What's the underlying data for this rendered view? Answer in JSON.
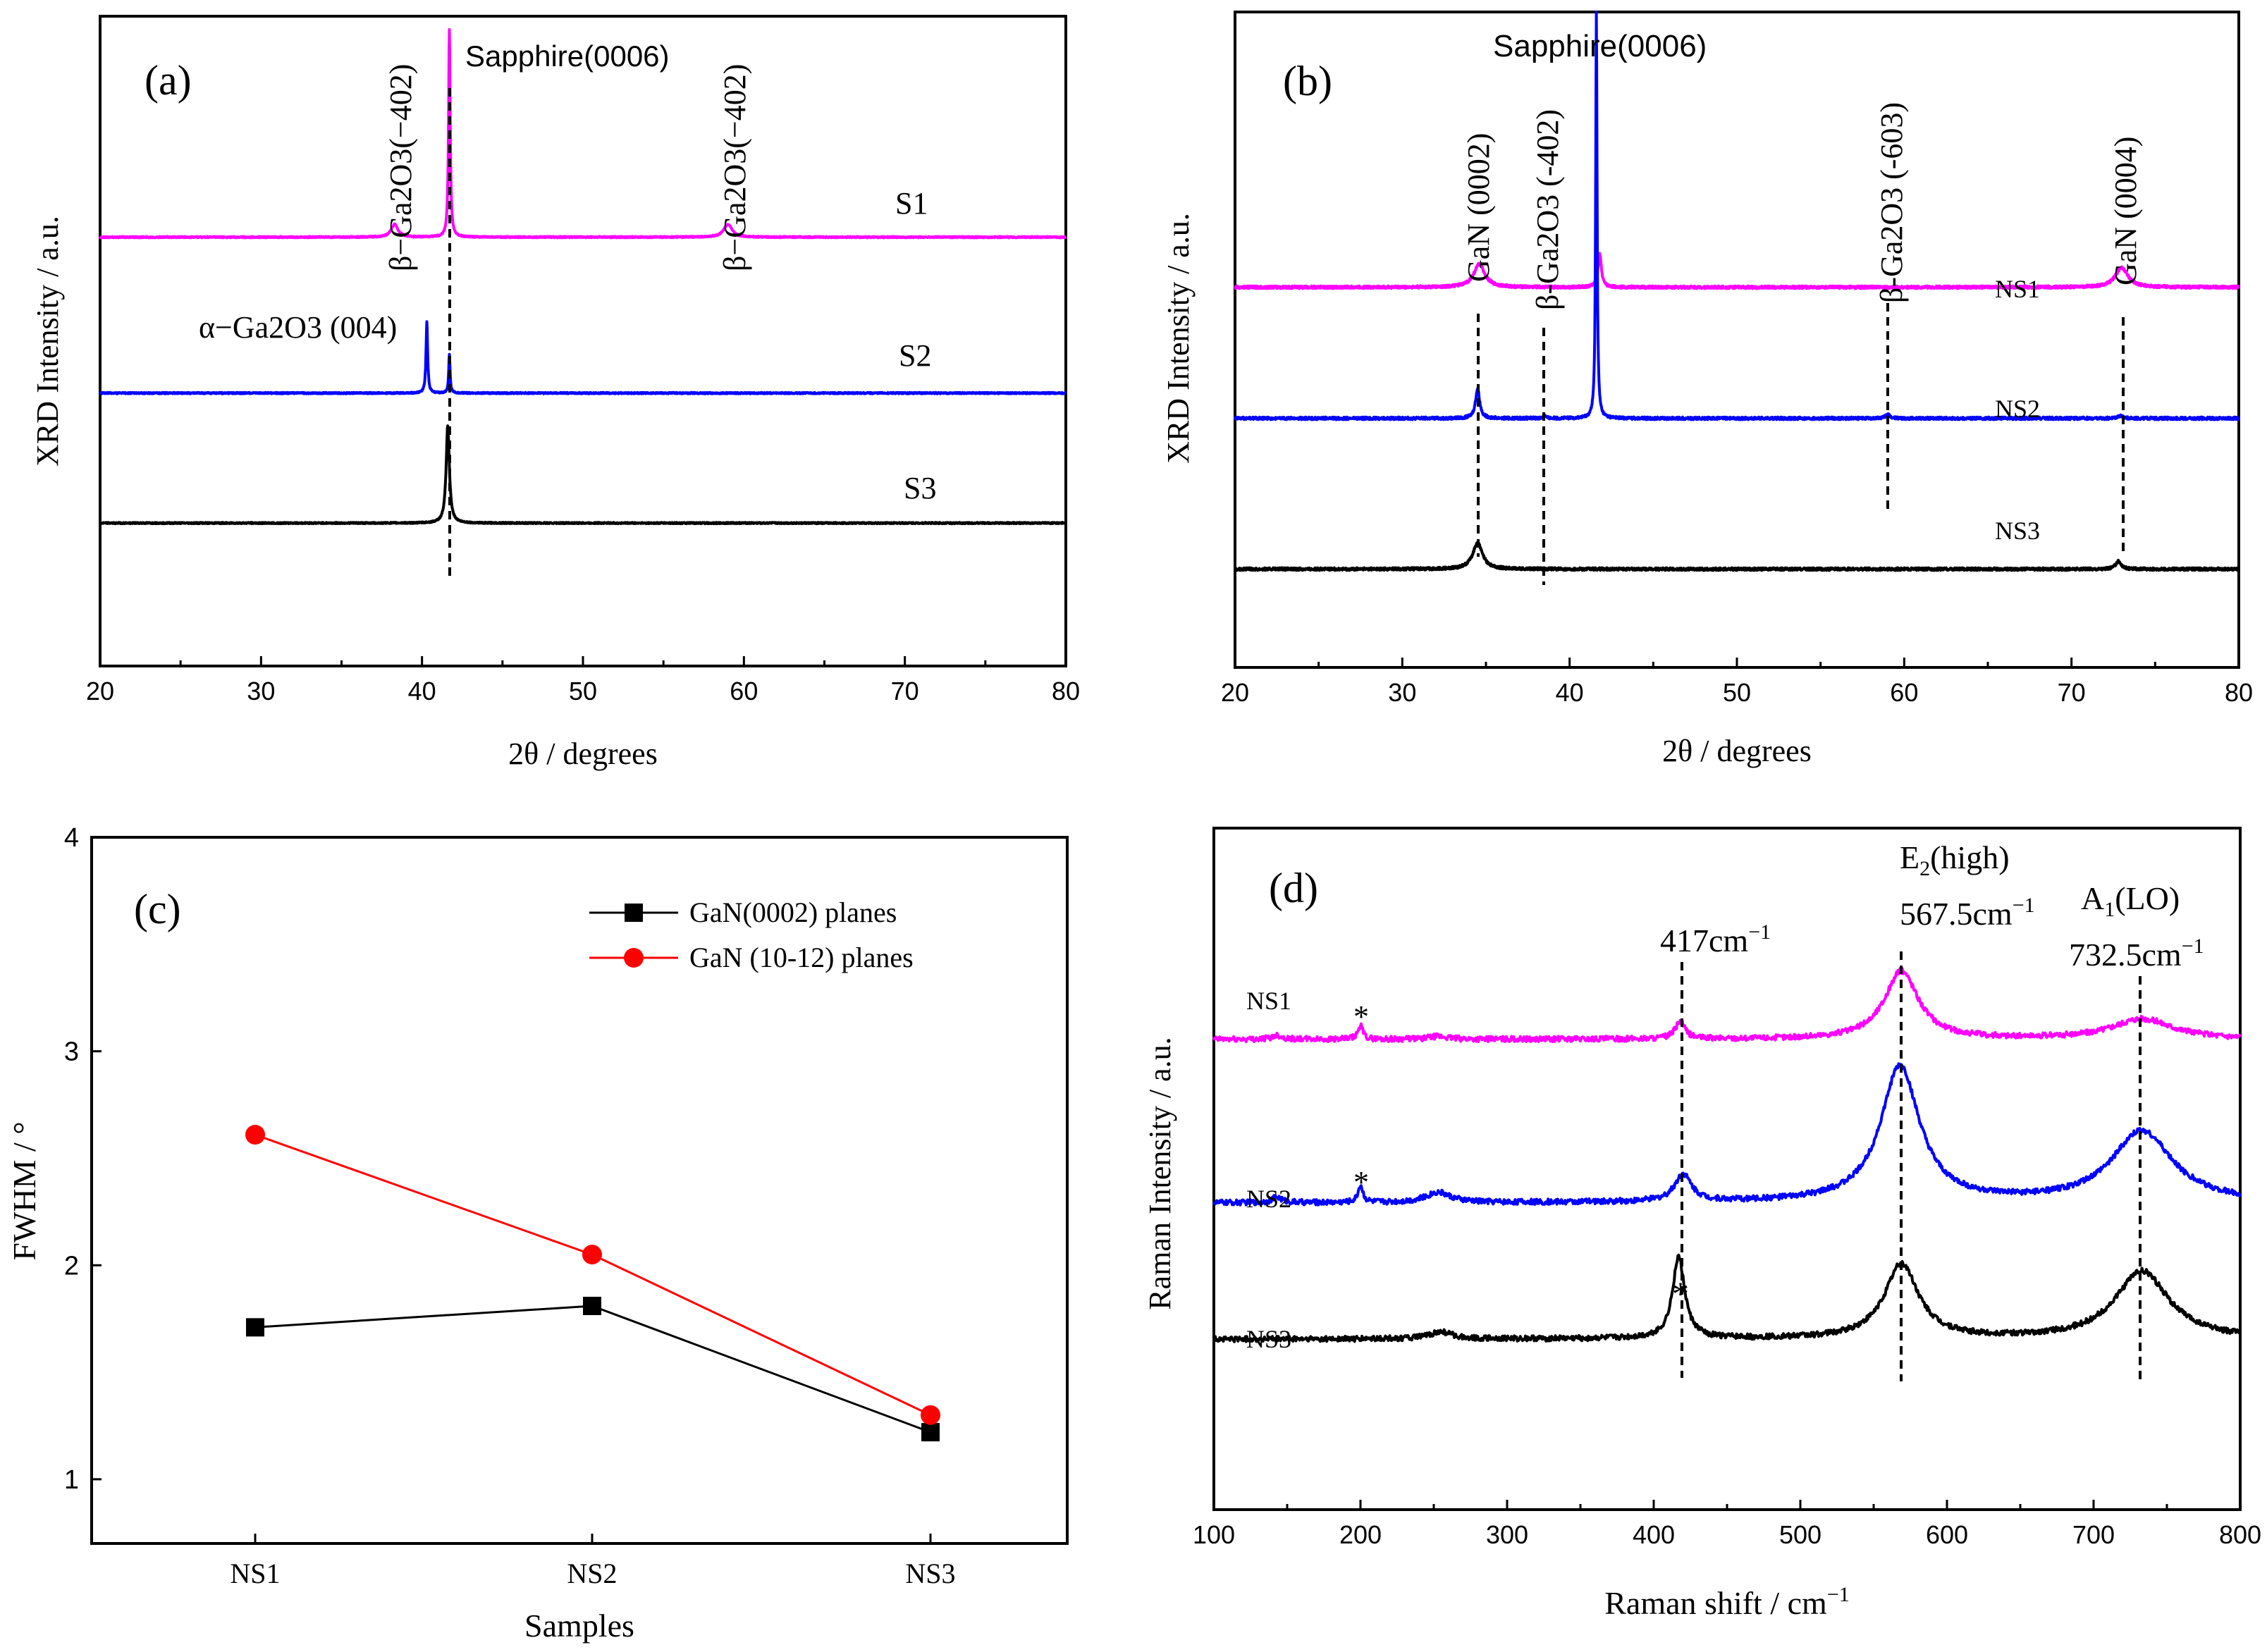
{
  "colors": {
    "magenta": "#ff00ff",
    "blue": "#0000ff",
    "black": "#000000",
    "red": "#ff0000"
  },
  "chart_data": [
    {
      "id": "a",
      "type": "line",
      "panel_label": "(a)",
      "xlabel": "2θ / degrees",
      "ylabel": "XRD Intensity / a.u.",
      "xlim": [
        20,
        80
      ],
      "xticks": [
        "20",
        "30",
        "40",
        "50",
        "60",
        "70",
        "80"
      ],
      "series": [
        {
          "name": "S1",
          "color": "#ff00ff",
          "baseline": 0.66,
          "peaks": [
            {
              "x": 38.3,
              "h": 0.02,
              "w": 0.25
            },
            {
              "x": 41.7,
              "h": 0.32,
              "w": 0.06
            },
            {
              "x": 59.0,
              "h": 0.02,
              "w": 0.3
            }
          ]
        },
        {
          "name": "S2",
          "color": "#0000ff",
          "baseline": 0.42,
          "peaks": [
            {
              "x": 40.3,
              "h": 0.11,
              "w": 0.06
            },
            {
              "x": 41.7,
              "h": 0.06,
              "w": 0.05
            }
          ]
        },
        {
          "name": "S3",
          "color": "#000000",
          "baseline": 0.22,
          "peaks": [
            {
              "x": 41.6,
              "h": 0.15,
              "w": 0.12
            }
          ]
        }
      ],
      "annotations": [
        {
          "text": "Sapphire(0006)",
          "x": 41.7
        },
        {
          "text": "β−Ga2O3(−402)",
          "x": 38.3
        },
        {
          "text": "β−Ga2O3(−402)",
          "x": 59.0
        },
        {
          "text": "α−Ga2O3 (004)",
          "x": 40.3
        }
      ]
    },
    {
      "id": "b",
      "type": "line",
      "panel_label": "(b)",
      "xlabel": "2θ / degrees",
      "ylabel": "XRD Intensity / a.u.",
      "xlim": [
        20,
        80
      ],
      "xticks": [
        "20",
        "30",
        "40",
        "50",
        "60",
        "70",
        "80"
      ],
      "series": [
        {
          "name": "NS1",
          "color": "#ff00ff",
          "baseline": 0.58,
          "peaks": [
            {
              "x": 34.6,
              "h": 0.035,
              "w": 0.4
            },
            {
              "x": 41.8,
              "h": 0.05,
              "w": 0.12
            },
            {
              "x": 73.0,
              "h": 0.03,
              "w": 0.45
            }
          ]
        },
        {
          "name": "NS2",
          "color": "#0000ff",
          "baseline": 0.38,
          "peaks": [
            {
              "x": 34.5,
              "h": 0.045,
              "w": 0.15
            },
            {
              "x": 38.5,
              "h": 0.004,
              "w": 0.1
            },
            {
              "x": 41.6,
              "h": 0.62,
              "w": 0.05
            },
            {
              "x": 59.0,
              "h": 0.006,
              "w": 0.15
            },
            {
              "x": 72.9,
              "h": 0.004,
              "w": 0.2
            }
          ]
        },
        {
          "name": "NS3",
          "color": "#000000",
          "baseline": 0.15,
          "peaks": [
            {
              "x": 34.5,
              "h": 0.04,
              "w": 0.35
            },
            {
              "x": 72.8,
              "h": 0.012,
              "w": 0.2
            }
          ]
        }
      ],
      "annotations": [
        {
          "text": "Sapphire(0006)",
          "x": 41.6
        },
        {
          "text": "GaN (0002)",
          "x": 34.5
        },
        {
          "text": "β-Ga2O3 (-402)",
          "x": 38.5
        },
        {
          "text": "β-Ga2O3 (-603)",
          "x": 59.0
        },
        {
          "text": "GaN (0004)",
          "x": 72.9
        }
      ]
    },
    {
      "id": "c",
      "type": "line",
      "panel_label": "(c)",
      "xlabel": "Samples",
      "ylabel": "FWHM / °",
      "categories": [
        "NS1",
        "NS2",
        "NS3"
      ],
      "ylim": [
        0.7,
        4
      ],
      "yticks": [
        1,
        2,
        3,
        4
      ],
      "series": [
        {
          "name": "GaN(0002) planes",
          "color": "#000000",
          "marker": "square",
          "values": [
            1.71,
            1.81,
            1.22
          ]
        },
        {
          "name": "GaN (10-12) planes",
          "color": "#ff0000",
          "marker": "circle",
          "values": [
            2.61,
            2.05,
            1.3
          ]
        }
      ],
      "legend": "top-right"
    },
    {
      "id": "d",
      "type": "line",
      "panel_label": "(d)",
      "xlabel": "Raman shift / cm−1",
      "ylabel": "Raman Intensity / a.u.",
      "xlim": [
        100,
        800
      ],
      "xticks": [
        "100",
        "200",
        "300",
        "400",
        "500",
        "600",
        "700",
        "800"
      ],
      "series": [
        {
          "name": "NS1",
          "color": "#ff00ff",
          "baseline": 0.69,
          "peaks": [
            {
              "x": 143,
              "h": 0.006,
              "w": 4
            },
            {
              "x": 200,
              "h": 0.02,
              "w": 2
            },
            {
              "x": 253,
              "h": 0.004,
              "w": 8
            },
            {
              "x": 418,
              "h": 0.025,
              "w": 4
            },
            {
              "x": 569,
              "h": 0.1,
              "w": 14
            },
            {
              "x": 733,
              "h": 0.03,
              "w": 25
            }
          ]
        },
        {
          "name": "NS2",
          "color": "#0000ff",
          "baseline": 0.45,
          "peaks": [
            {
              "x": 143,
              "h": 0.008,
              "w": 4
            },
            {
              "x": 200,
              "h": 0.025,
              "w": 2
            },
            {
              "x": 253,
              "h": 0.015,
              "w": 10
            },
            {
              "x": 420,
              "h": 0.04,
              "w": 7
            },
            {
              "x": 568,
              "h": 0.2,
              "w": 16
            },
            {
              "x": 733,
              "h": 0.105,
              "w": 25
            }
          ]
        },
        {
          "name": "NS3",
          "color": "#000000",
          "baseline": 0.25,
          "peaks": [
            {
              "x": 255,
              "h": 0.01,
              "w": 10
            },
            {
              "x": 417,
              "h": 0.12,
              "w": 5
            },
            {
              "x": 569,
              "h": 0.11,
              "w": 14
            },
            {
              "x": 733,
              "h": 0.1,
              "w": 22
            }
          ]
        }
      ],
      "annotations": [
        {
          "text": "E2(high)",
          "x": 567.5
        },
        {
          "text": "567.5cm−1",
          "x": 567.5
        },
        {
          "text": "A1(LO)",
          "x": 732.5
        },
        {
          "text": "732.5cm−1",
          "x": 732.5
        },
        {
          "text": "417cm−1",
          "x": 417
        },
        {
          "text": "*",
          "x": 200
        },
        {
          "text": "*",
          "x": 200
        },
        {
          "text": "*",
          "x": 417
        }
      ]
    }
  ]
}
